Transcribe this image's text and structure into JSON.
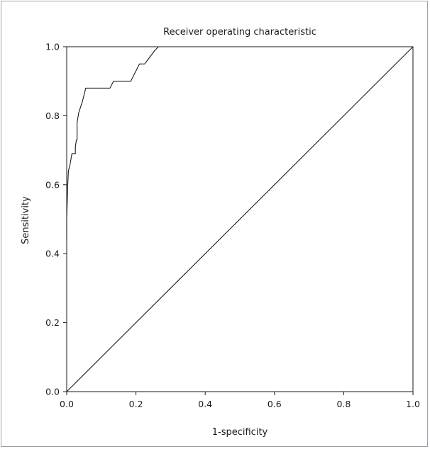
{
  "chart_data": {
    "type": "line",
    "title": "Receiver operating characteristic",
    "xlabel": "1-specificity",
    "ylabel": "Sensitivity",
    "xlim": [
      0,
      1
    ],
    "ylim": [
      0,
      1
    ],
    "xticks": [
      "0.0",
      "0.2",
      "0.4",
      "0.6",
      "0.8",
      "1.0"
    ],
    "yticks": [
      "0.0",
      "0.2",
      "0.4",
      "0.6",
      "0.8",
      "1.0"
    ],
    "grid": false,
    "legend": "none",
    "series": [
      {
        "points": [
          [
            0.0,
            0.44
          ],
          [
            0.0,
            0.5
          ],
          [
            0.003,
            0.6
          ],
          [
            0.005,
            0.64
          ],
          [
            0.01,
            0.66
          ],
          [
            0.015,
            0.69
          ],
          [
            0.025,
            0.69
          ],
          [
            0.025,
            0.71
          ],
          [
            0.028,
            0.73
          ],
          [
            0.03,
            0.73
          ],
          [
            0.03,
            0.78
          ],
          [
            0.035,
            0.81
          ],
          [
            0.045,
            0.84
          ],
          [
            0.05,
            0.86
          ],
          [
            0.055,
            0.88
          ],
          [
            0.12,
            0.88
          ],
          [
            0.125,
            0.88
          ],
          [
            0.135,
            0.9
          ],
          [
            0.185,
            0.9
          ],
          [
            0.21,
            0.95
          ],
          [
            0.225,
            0.95
          ],
          [
            0.24,
            0.97
          ],
          [
            0.255,
            0.99
          ],
          [
            0.265,
            1.0
          ],
          [
            1.0,
            1.0
          ]
        ]
      },
      {
        "points": [
          [
            0,
            0
          ],
          [
            1,
            1
          ]
        ]
      }
    ]
  },
  "colors": {
    "line": "#1a1a1a",
    "axis": "#1a1a1a",
    "border": "#9aa3ad"
  }
}
